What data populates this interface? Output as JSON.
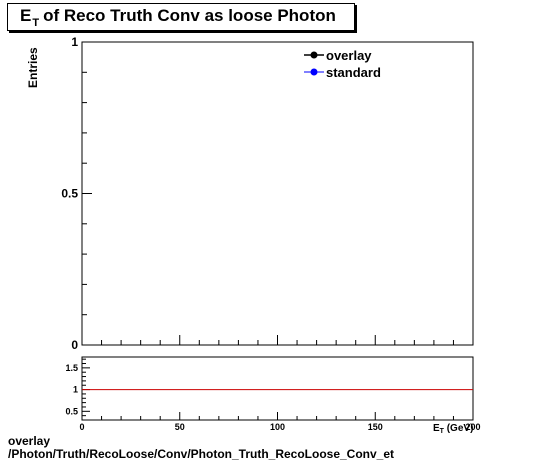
{
  "title": {
    "main": "E",
    "sub": "T",
    "rest": "of Reco Truth Conv as loose Photon"
  },
  "footer": {
    "line1": "overlay",
    "line2": "/Photon/Truth/RecoLoose/Conv/Photon_Truth_RecoLoose_Conv_et"
  },
  "chart_data": [
    {
      "type": "line",
      "title": "E_T of Reco Truth Conv as loose Photon",
      "xlabel": "E_T (GeV)",
      "ylabel": "Entries",
      "xlim": [
        0,
        200
      ],
      "ylim": [
        0,
        1
      ],
      "x_ticks": [
        0,
        50,
        100,
        150,
        200
      ],
      "y_ticks": [
        0,
        0.5,
        1
      ],
      "y_tick_labels": [
        "0",
        "0.5",
        "1"
      ],
      "legend_position": "top-right",
      "series": [
        {
          "name": "overlay",
          "color": "#000000",
          "marker": "circle",
          "x": [],
          "y": []
        },
        {
          "name": "standard",
          "color": "#0000ff",
          "marker": "circle",
          "x": [],
          "y": []
        }
      ]
    },
    {
      "type": "line",
      "xlim": [
        0,
        200
      ],
      "ylim": [
        0.3,
        1.75
      ],
      "x_ticks": [
        0,
        50,
        100,
        150,
        200
      ],
      "x_tick_labels": [
        "0",
        "50",
        "100",
        "150",
        "200"
      ],
      "y_ticks": [
        0.5,
        1,
        1.5
      ],
      "y_tick_labels": [
        "0.5",
        "1",
        "1.5"
      ],
      "xlabel": "E_T (GeV)",
      "reference_line": {
        "y": 1,
        "color": "#cc0000"
      }
    }
  ]
}
